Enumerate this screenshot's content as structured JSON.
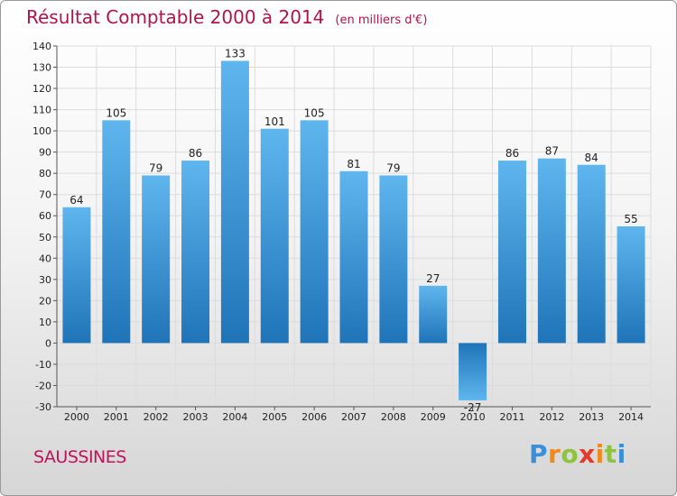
{
  "title": "Résultat Comptable 2000 à 2014",
  "unit": "(en milliers d'€)",
  "commune": "SAUSSINES",
  "brand": {
    "letters": [
      "P",
      "r",
      "o",
      "x",
      "i",
      "t",
      "i"
    ],
    "colors": [
      "#3a8fd8",
      "#f08a1c",
      "#8cc43c",
      "#e33a2b",
      "#f08a1c",
      "#8cc43c",
      "#3a8fd8"
    ]
  },
  "colors": {
    "bar_light": "#5fb6ee",
    "bar_dark": "#1f74b8",
    "title": "#b0144a",
    "commune": "#c0145a"
  },
  "chart_data": {
    "type": "bar",
    "title": "Résultat Comptable 2000 à 2014",
    "categories": [
      "2000",
      "2001",
      "2002",
      "2003",
      "2004",
      "2005",
      "2006",
      "2007",
      "2008",
      "2009",
      "2010",
      "2011",
      "2012",
      "2013",
      "2014"
    ],
    "values": [
      64,
      105,
      79,
      86,
      133,
      101,
      105,
      81,
      79,
      27,
      -27,
      86,
      87,
      84,
      55
    ],
    "ylim": [
      -30,
      140
    ],
    "yticks": [
      -30,
      -20,
      -10,
      0,
      10,
      20,
      30,
      40,
      50,
      60,
      70,
      80,
      90,
      100,
      110,
      120,
      130,
      140
    ],
    "grid": true,
    "xlabel": "",
    "ylabel": ""
  }
}
